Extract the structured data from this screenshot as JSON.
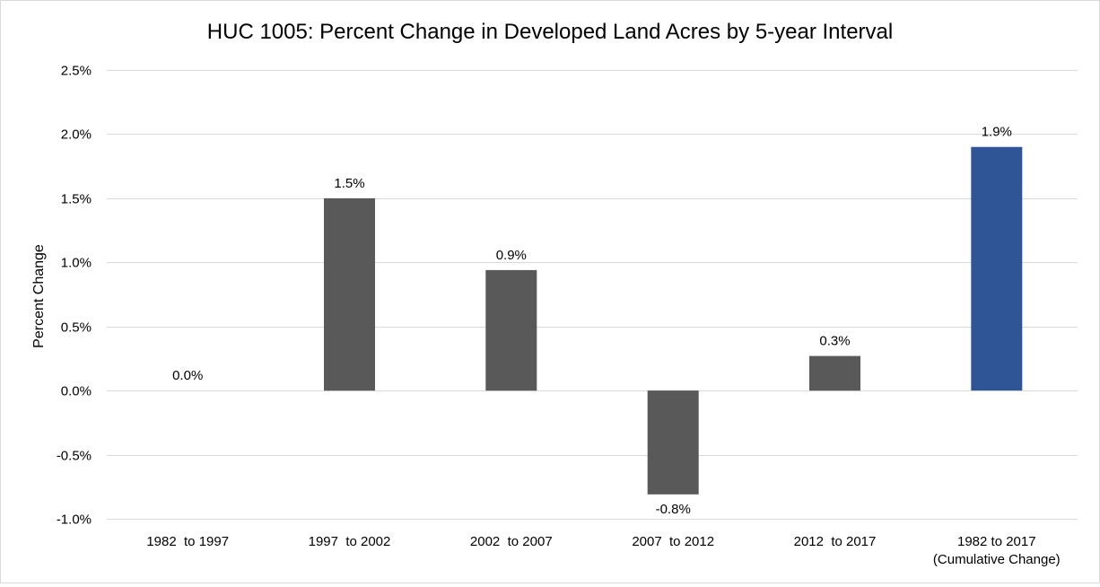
{
  "chart_data": {
    "type": "bar",
    "title": "HUC 1005: Percent Change in Developed Land Acres by 5-year Interval",
    "xlabel": "",
    "ylabel": "Percent Change",
    "ylim": [
      -1.0,
      2.5
    ],
    "y_ticks": [
      "2.5%",
      "2.0%",
      "1.5%",
      "1.0%",
      "0.5%",
      "0.0%",
      "-0.5%",
      "-1.0%"
    ],
    "y_tick_values": [
      2.5,
      2.0,
      1.5,
      1.0,
      0.5,
      0.0,
      -0.5,
      -1.0
    ],
    "grid": true,
    "legend": "none",
    "categories": [
      [
        "1982  to 1997"
      ],
      [
        "1997  to 2002"
      ],
      [
        "2002  to 2007"
      ],
      [
        "2007  to 2012"
      ],
      [
        "2012  to 2017"
      ],
      [
        "1982 to 2017",
        "(Cumulative Change)"
      ]
    ],
    "values": [
      0.0,
      1.5,
      0.94,
      -0.81,
      0.27,
      1.9
    ],
    "data_labels": [
      "0.0%",
      "1.5%",
      "0.9%",
      "-0.8%",
      "0.3%",
      "1.9%"
    ],
    "colors": [
      "#595959",
      "#595959",
      "#595959",
      "#595959",
      "#595959",
      "#2f5597"
    ],
    "gridline_color": "#d9d9d9"
  }
}
